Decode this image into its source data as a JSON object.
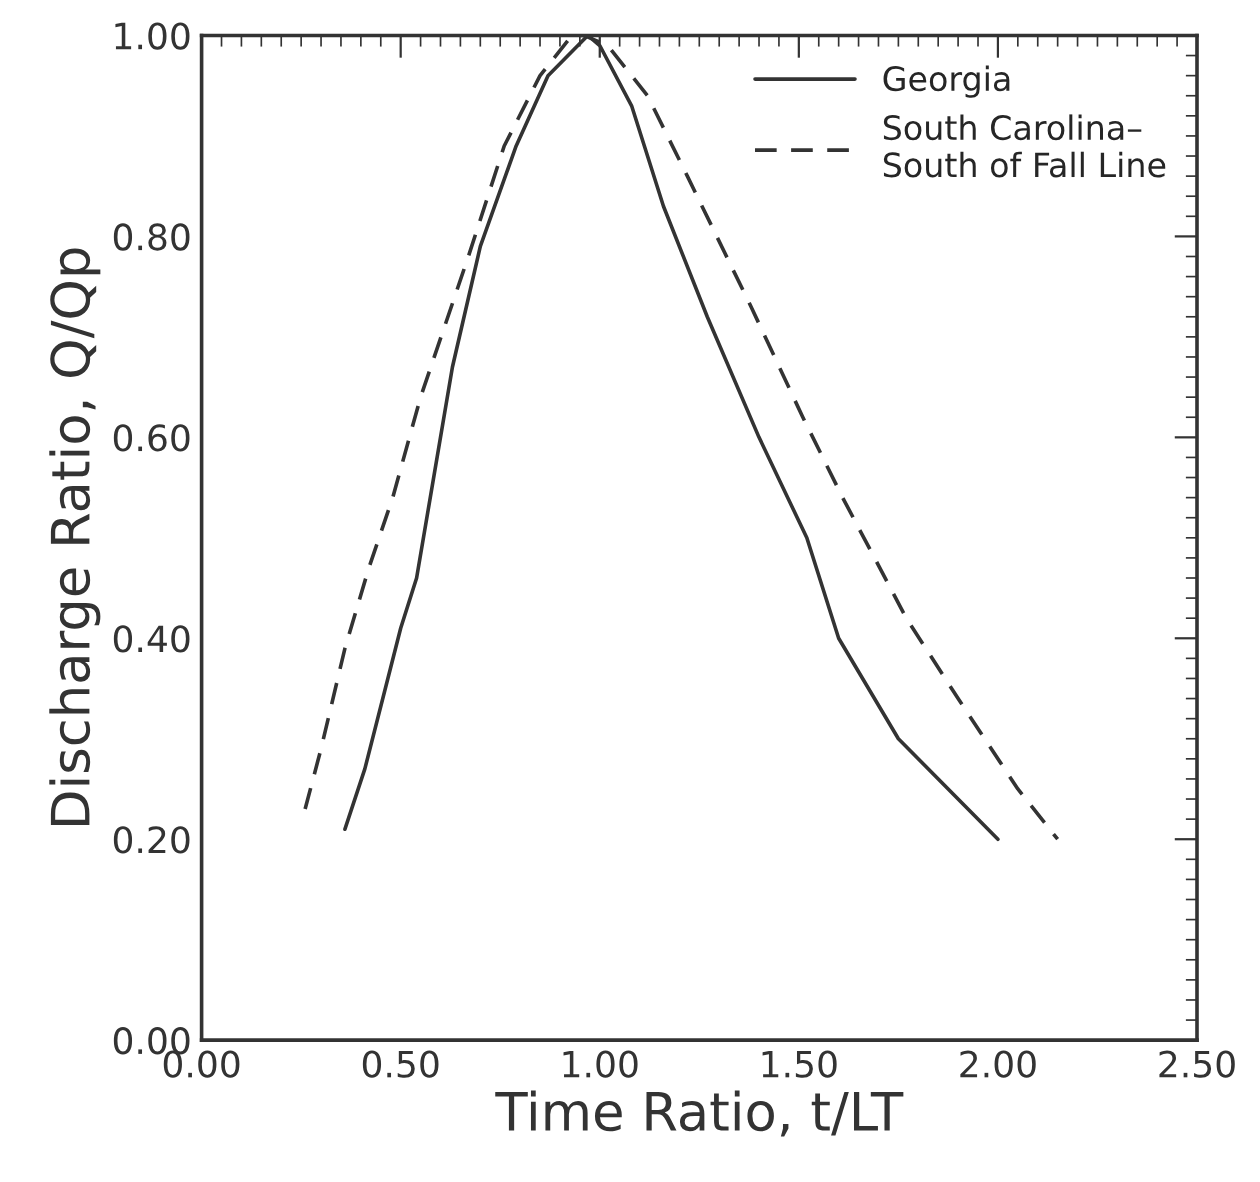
{
  "chart_data": {
    "type": "line",
    "xlabel": "Time Ratio, t/LT",
    "ylabel": "Discharge Ratio, Q/Qp",
    "xlim": [
      0,
      2.5
    ],
    "ylim": [
      0,
      1
    ],
    "xticks": [
      {
        "value": 0,
        "label": "0.00"
      },
      {
        "value": 0.5,
        "label": "0.50"
      },
      {
        "value": 1,
        "label": "1.00"
      },
      {
        "value": 1.5,
        "label": "1.50"
      },
      {
        "value": 2,
        "label": "2.00"
      },
      {
        "value": 2.5,
        "label": "2.50"
      }
    ],
    "yticks": [
      {
        "value": 0,
        "label": "0.00"
      },
      {
        "value": 0.2,
        "label": "0.20"
      },
      {
        "value": 0.4,
        "label": "0.40"
      },
      {
        "value": 0.6,
        "label": "0.60"
      },
      {
        "value": 0.8,
        "label": "0.80"
      },
      {
        "value": 1,
        "label": "1.00"
      }
    ],
    "grid": false,
    "legend": "top right",
    "series": [
      {
        "name": "Georgia",
        "color": "#333333",
        "line_style": "solid",
        "x": [
          0.36,
          0.41,
          0.5,
          0.54,
          0.63,
          0.7,
          0.79,
          0.87,
          0.97,
          1.0,
          1.08,
          1.16,
          1.27,
          1.4,
          1.52,
          1.6,
          1.75,
          2.0
        ],
        "values": [
          0.21,
          0.27,
          0.41,
          0.46,
          0.67,
          0.79,
          0.89,
          0.96,
          1.0,
          0.99,
          0.93,
          0.83,
          0.72,
          0.6,
          0.5,
          0.4,
          0.3,
          0.2
        ]
      },
      {
        "name": "South Carolina–\nSouth of Fall Line",
        "color": "#333333",
        "line_style": "dashed",
        "x": [
          0.26,
          0.3,
          0.36,
          0.42,
          0.48,
          0.55,
          0.67,
          0.76,
          0.85,
          0.93,
          0.96,
          1.02,
          1.12,
          1.22,
          1.38,
          1.51,
          1.61,
          1.77,
          1.9,
          2.05,
          2.15
        ],
        "values": [
          0.23,
          0.29,
          0.39,
          0.47,
          0.54,
          0.64,
          0.78,
          0.89,
          0.96,
          1.0,
          1.0,
          0.99,
          0.94,
          0.86,
          0.73,
          0.62,
          0.54,
          0.42,
          0.34,
          0.25,
          0.2
        ]
      }
    ]
  }
}
